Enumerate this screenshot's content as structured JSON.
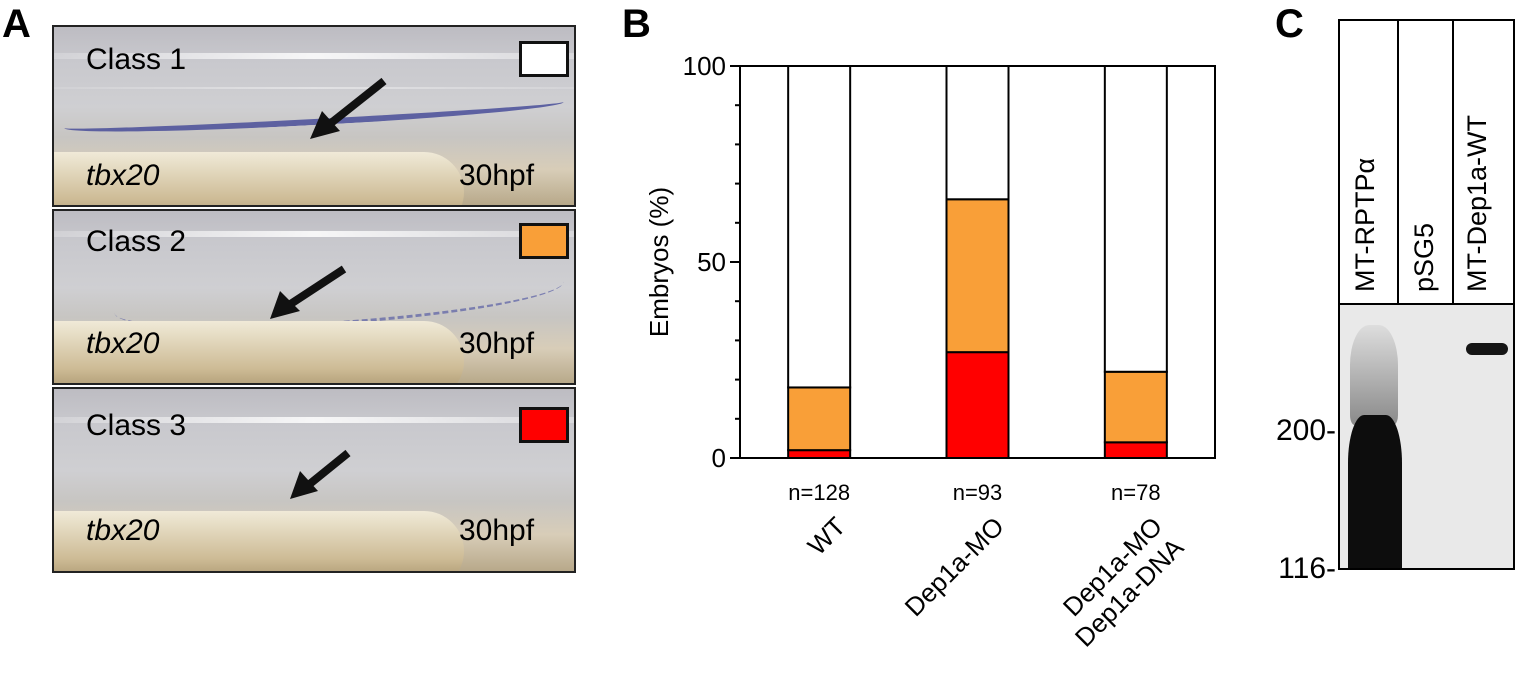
{
  "panels": {
    "a": {
      "label": "A",
      "images": [
        {
          "class_label": "Class 1",
          "gene": "tbx20",
          "stage": "30hpf",
          "swatch": "#ffffff"
        },
        {
          "class_label": "Class 2",
          "gene": "tbx20",
          "stage": "30hpf",
          "swatch": "#f99f38"
        },
        {
          "class_label": "Class 3",
          "gene": "tbx20",
          "stage": "30hpf",
          "swatch": "#ff0000"
        }
      ]
    },
    "b": {
      "label": "B"
    },
    "c": {
      "label": "C",
      "lanes": [
        "MT-RPTPα",
        "pSG5",
        "MT-Dep1a-WT"
      ],
      "markers": [
        "200-",
        "116-"
      ]
    }
  },
  "chart_data": {
    "type": "bar",
    "stacked": true,
    "ylabel": "Embryos (%)",
    "ylim": [
      0,
      100
    ],
    "yticks": [
      0,
      50,
      100
    ],
    "categories": [
      "WT",
      "Dep1a-MO",
      "Dep1a-MO\nDep1a-DNA"
    ],
    "n_labels": [
      "n=128",
      "n=93",
      "n=78"
    ],
    "series": [
      {
        "class": "Class 3",
        "color": "#ff0000",
        "values": [
          2,
          27,
          4
        ]
      },
      {
        "class": "Class 2",
        "color": "#f99f38",
        "values": [
          16,
          39,
          18
        ]
      },
      {
        "class": "Class 1",
        "color": "#ffffff",
        "values": [
          82,
          34,
          78
        ]
      }
    ]
  }
}
